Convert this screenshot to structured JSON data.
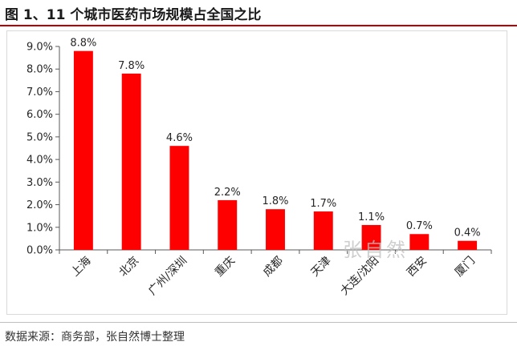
{
  "title": "图 1、11 个城市医药市场规模占全国之比",
  "source": "数据来源：商务部，张自然博士整理",
  "watermark": "张自然",
  "colors": {
    "bar": "#ff0000",
    "axis": "#595959",
    "title_rule": "#c00000"
  },
  "chart_data": {
    "type": "bar",
    "categories": [
      "上海",
      "北京",
      "广州/深圳",
      "重庆",
      "成都",
      "天津",
      "大连/沈阳",
      "西安",
      "厦门"
    ],
    "values": [
      8.8,
      7.8,
      4.6,
      2.2,
      1.8,
      1.7,
      1.1,
      0.7,
      0.4
    ],
    "data_labels": [
      "8.8%",
      "7.8%",
      "4.6%",
      "2.2%",
      "1.8%",
      "1.7%",
      "1.1%",
      "0.7%",
      "0.4%"
    ],
    "yticks": [
      "0.0%",
      "1.0%",
      "2.0%",
      "3.0%",
      "4.0%",
      "5.0%",
      "6.0%",
      "7.0%",
      "8.0%",
      "9.0%"
    ],
    "ylim": [
      0,
      9
    ],
    "grid": false,
    "legend": "none"
  }
}
